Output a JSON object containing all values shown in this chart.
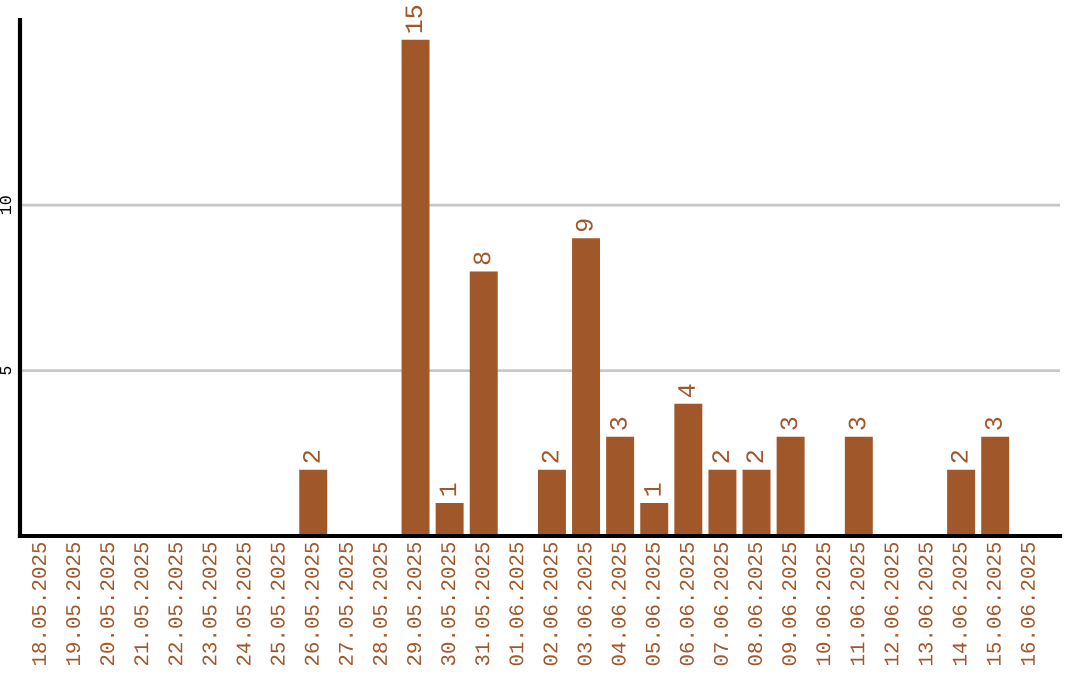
{
  "chart_data": {
    "type": "bar",
    "categories": [
      "18.05.2025",
      "19.05.2025",
      "20.05.2025",
      "21.05.2025",
      "22.05.2025",
      "23.05.2025",
      "24.05.2025",
      "25.05.2025",
      "26.05.2025",
      "27.05.2025",
      "28.05.2025",
      "29.05.2025",
      "30.05.2025",
      "31.05.2025",
      "01.06.2025",
      "02.06.2025",
      "03.06.2025",
      "04.06.2025",
      "05.06.2025",
      "06.06.2025",
      "07.06.2025",
      "08.06.2025",
      "09.06.2025",
      "10.06.2025",
      "11.06.2025",
      "12.06.2025",
      "13.06.2025",
      "14.06.2025",
      "15.06.2025",
      "16.06.2025"
    ],
    "values": [
      0,
      0,
      0,
      0,
      0,
      0,
      0,
      0,
      2,
      0,
      0,
      15,
      1,
      8,
      0,
      2,
      9,
      3,
      1,
      4,
      2,
      2,
      3,
      0,
      3,
      0,
      0,
      2,
      3,
      0
    ],
    "value_labels": [
      null,
      null,
      null,
      null,
      null,
      null,
      null,
      null,
      "2",
      null,
      null,
      "15",
      "1",
      "8",
      null,
      "2",
      "9",
      "3",
      "1",
      "4",
      "2",
      "2",
      "3",
      null,
      "3",
      null,
      null,
      "2",
      "3",
      null
    ],
    "color": "#a0572a",
    "ylim": [
      0,
      15.6
    ],
    "yticks": [
      5,
      10
    ],
    "grid": "y",
    "legend": false
  }
}
